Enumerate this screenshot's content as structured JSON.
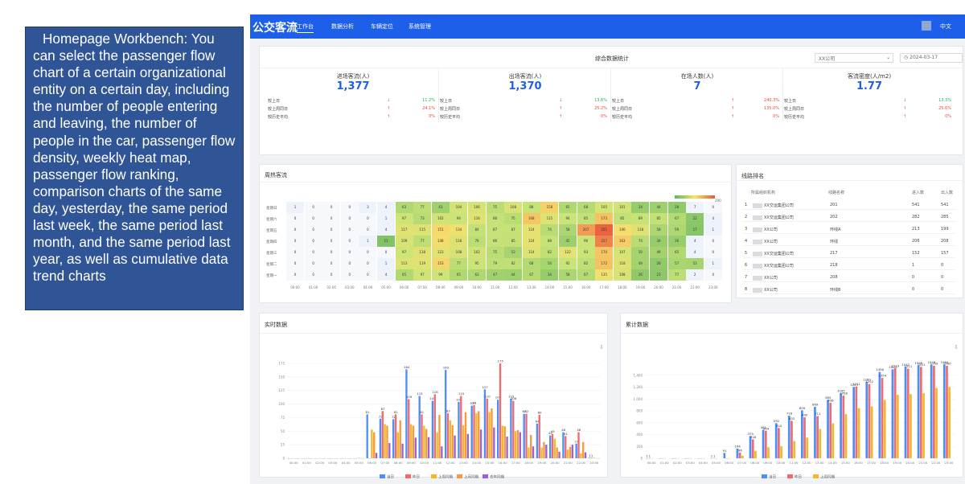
{
  "description": "Homepage Workbench: You can select the passenger flow chart of a certain organizational entity on a certain day, including the number of people entering and leaving, the number of people in the car, passenger flow density, weekly heat map, passenger flow ranking, comparison charts of the same day, yesterday, the same period last week, the same period last month, and the same period last year, as well as cumulative data trend charts",
  "app": {
    "logo": "公交客流",
    "nav": [
      "工作台",
      "数据分析",
      "车辆定位",
      "系统管理"
    ],
    "lang": "中文"
  },
  "stats": {
    "title": "综合数据统计",
    "org_select": "XX公司",
    "date": "2024-03-17",
    "items": [
      {
        "label": "进场客流(人)",
        "value": "1,377",
        "rows": [
          [
            "较上日",
            "↓",
            "11.2%"
          ],
          [
            "较上周同日",
            "↑",
            "24.1%"
          ],
          [
            "较历史平均",
            "↑",
            "0%"
          ]
        ]
      },
      {
        "label": "出场客流(人)",
        "value": "1,370",
        "rows": [
          [
            "较上日",
            "↓",
            "13.6%"
          ],
          [
            "较上周同日",
            "↑",
            "25.2%"
          ],
          [
            "较历史平均",
            "↑",
            "0%"
          ]
        ]
      },
      {
        "label": "在场人数(人)",
        "value": "7",
        "rows": [
          [
            "较上日",
            "↑",
            "240.3%"
          ],
          [
            "较上周同日",
            "↑",
            "135.0%"
          ],
          [
            "较历史平均",
            "↑",
            "0%"
          ]
        ]
      },
      {
        "label": "客流密度(人/m2)",
        "value": "1.77",
        "rows": [
          [
            "较上日",
            "↓",
            "13.3%"
          ],
          [
            "较上周同日",
            "↑",
            "25.6%"
          ],
          [
            "较历史平均",
            "↑",
            "0%"
          ]
        ]
      }
    ]
  },
  "heatmap": {
    "title": "周热客流",
    "rows": [
      "星期日",
      "星期六",
      "星期五",
      "星期四",
      "星期三",
      "星期二",
      "星期一"
    ],
    "hours": [
      "00:00",
      "01:00",
      "02:00",
      "03:00",
      "04:00",
      "05:00",
      "06:00",
      "07:00",
      "08:00",
      "09:00",
      "10:00",
      "11:00",
      "12:00",
      "13:00",
      "14:00",
      "15:00",
      "16:00",
      "17:00",
      "18:00",
      "19:00",
      "20:00",
      "21:00",
      "22:00",
      "23:00"
    ],
    "values": [
      [
        1,
        0,
        0,
        0,
        3,
        4,
        63,
        77,
        43,
        104,
        106,
        75,
        108,
        88,
        158,
        65,
        68,
        105,
        101,
        34,
        44,
        28,
        7,
        0
      ],
      [
        0,
        0,
        0,
        0,
        0,
        1,
        97,
        73,
        102,
        94,
        116,
        86,
        75,
        168,
        115,
        94,
        85,
        173,
        85,
        89,
        85,
        67,
        22,
        4
      ],
      [
        0,
        0,
        0,
        0,
        0,
        4,
        117,
        115,
        151,
        134,
        84,
        87,
        87,
        124,
        74,
        58,
        207,
        251,
        146,
        118,
        58,
        59,
        17,
        1
      ],
      [
        0,
        0,
        0,
        0,
        1,
        11,
        109,
        77,
        148,
        118,
        76,
        86,
        85,
        124,
        88,
        42,
        96,
        227,
        163,
        74,
        34,
        36,
        4,
        0
      ],
      [
        0,
        0,
        0,
        0,
        0,
        0,
        97,
        118,
        123,
        108,
        102,
        75,
        53,
        114,
        82,
        122,
        93,
        170,
        107,
        50,
        49,
        65,
        4,
        0
      ],
      [
        0,
        0,
        0,
        0,
        0,
        1,
        113,
        119,
        153,
        77,
        95,
        79,
        82,
        68,
        54,
        92,
        82,
        172,
        118,
        49,
        26,
        57,
        53,
        1
      ],
      [
        0,
        0,
        0,
        0,
        0,
        4,
        65,
        97,
        99,
        65,
        63,
        47,
        44,
        67,
        34,
        58,
        67,
        135,
        108,
        26,
        23,
        77,
        2,
        0
      ]
    ],
    "max": "290"
  },
  "ranking": {
    "title": "线路排名",
    "headers": [
      "所属组织机构",
      "线路名称",
      "进入数",
      "出入数"
    ],
    "rows": [
      [
        "1",
        "XX交运集团公司",
        "201",
        "541",
        "541"
      ],
      [
        "2",
        "XX交运集团公司",
        "202",
        "282",
        "285"
      ],
      [
        "3",
        "XX公司",
        "环线A",
        "213",
        "199"
      ],
      [
        "4",
        "XX公司",
        "环线",
        "206",
        "208"
      ],
      [
        "5",
        "XX交运集团公司",
        "217",
        "152",
        "157"
      ],
      [
        "6",
        "XX交运集团公司",
        "218",
        "1",
        "0"
      ],
      [
        "7",
        "XX公司",
        "208",
        "0",
        "0"
      ],
      [
        "8",
        "XX公司",
        "环线B",
        "0",
        "0"
      ]
    ]
  },
  "realtime": {
    "title": "实时数据",
    "legend": [
      "当日",
      "昨日",
      "上周同期",
      "上月同期",
      "去年同期"
    ]
  },
  "cumulative": {
    "title": "累计数据",
    "legend": [
      "当日",
      "昨日",
      "上周同期"
    ]
  },
  "chart_data": [
    {
      "type": "bar",
      "title": "实时数据",
      "categories": [
        "00:00",
        "01:00",
        "02:00",
        "03:00",
        "04:00",
        "05:00",
        "06:00",
        "07:00",
        "08:00",
        "09:00",
        "10:00",
        "11:00",
        "12:00",
        "13:00",
        "14:00",
        "15:00",
        "16:00",
        "17:00",
        "18:00",
        "19:00",
        "20:00",
        "21:00",
        "22:00",
        "23:00"
      ],
      "ylim": [
        0,
        175
      ],
      "series": [
        {
          "name": "当日",
          "values": [
            0,
            0,
            0,
            0,
            0,
            0,
            81,
            73,
            72,
            164,
            115,
            106,
            163,
            104,
            97,
            127,
            108,
            110,
            82,
            64,
            42,
            48,
            27,
            1
          ]
        },
        {
          "name": "昨日",
          "values": [
            0,
            0,
            0,
            0,
            0,
            0,
            0,
            87,
            81,
            109,
            81,
            118,
            83,
            115,
            98,
            110,
            175,
            106,
            82,
            80,
            45,
            41,
            48,
            1
          ]
        },
        {
          "name": "上周同期",
          "values": [
            0,
            0,
            0,
            0,
            0,
            1,
            53,
            63,
            48,
            63,
            60,
            48,
            70,
            61,
            83,
            85,
            60,
            50,
            20,
            20,
            36,
            16,
            9,
            1
          ]
        },
        {
          "name": "上月同期",
          "values": [
            0,
            0,
            0,
            0,
            0,
            0,
            48,
            60,
            70,
            60,
            54,
            80,
            61,
            85,
            87,
            92,
            59,
            52,
            43,
            30,
            20,
            21,
            30,
            0
          ]
        },
        {
          "name": "去年同期",
          "values": [
            0,
            0,
            0,
            0,
            0,
            0,
            10,
            28,
            27,
            38,
            39,
            22,
            42,
            45,
            53,
            57,
            40,
            48,
            22,
            25,
            12,
            25,
            11,
            0
          ]
        }
      ]
    },
    {
      "type": "bar",
      "title": "累计数据",
      "categories": [
        "00:00",
        "01:00",
        "02:00",
        "03:00",
        "04:00",
        "05:00",
        "06:00",
        "07:00",
        "08:00",
        "09:00",
        "10:00",
        "11:00",
        "12:00",
        "13:00",
        "14:00",
        "15:00",
        "16:00",
        "17:00",
        "18:00",
        "19:00",
        "20:00",
        "21:00",
        "22:00",
        "23:00"
      ],
      "ylim": [
        0,
        1600
      ],
      "series": [
        {
          "name": "当日",
          "values": [
            1,
            0,
            0,
            0,
            0,
            1,
            91,
            164,
            375,
            481,
            592,
            718,
            809,
            869,
            985,
            1095,
            1203,
            1289,
            1456,
            1500,
            1542,
            1568,
            1578,
            1580
          ]
        },
        {
          "name": "昨日",
          "values": [
            1,
            0,
            0,
            0,
            0,
            1,
            0,
            96,
            318,
            464,
            510,
            632,
            690,
            711,
            936,
            1058,
            1211,
            1252,
            1354,
            1519,
            1511,
            1541,
            1559,
            1560
          ]
        },
        {
          "name": "上周同期",
          "values": [
            1,
            0,
            0,
            0,
            0,
            0,
            0,
            45,
            125,
            186,
            203,
            290,
            348,
            494,
            590,
            744,
            845,
            874,
            983,
            1070,
            1083,
            1097,
            1185,
            1200
          ]
        }
      ]
    }
  ]
}
